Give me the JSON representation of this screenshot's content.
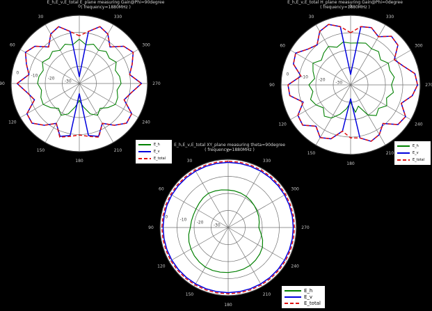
{
  "figure": {
    "background": "#000000",
    "text_color": "#d8d8d8",
    "grid_color": "#707070",
    "disc_color": "#ffffff",
    "radial_label_color": "#404040"
  },
  "chart_data": [
    {
      "type": "polar-line",
      "title_line1": "E_h,E_v,E_total E_plane measuring Gain@Phi=90degree",
      "title_line2": "( frequency=1880MHz )",
      "angle_convention": "0 at top, counterclockwise, degrees",
      "angle_labels": [
        "0",
        "30",
        "60",
        "90",
        "120",
        "150",
        "180",
        "210",
        "240",
        "270",
        "300",
        "330"
      ],
      "radial_tick_labels": [
        "0",
        "-10",
        "-20",
        "-30"
      ],
      "radial_ticks_db": [
        0,
        -10,
        -20,
        -30
      ],
      "r_range_db": [
        -40,
        0
      ],
      "angle_step_deg": 10,
      "legend": {
        "position": "bottom-right",
        "entries": [
          {
            "label": "E_h",
            "color": "#008000",
            "style": "solid"
          },
          {
            "label": "E_v",
            "color": "#0000dd",
            "style": "solid"
          },
          {
            "label": "E_total",
            "color": "#e01010",
            "style": "dashed"
          }
        ]
      },
      "series": [
        {
          "name": "E_h",
          "color": "#008000",
          "style": "solid",
          "width": 1.1,
          "values_db": [
            -14,
            -17,
            -15.5,
            -17.5,
            -15.5,
            -17,
            -15,
            -17.5,
            -16,
            -15.5,
            -17.5,
            -16,
            -15.5,
            -18,
            -21,
            -18.5,
            -21,
            -26,
            -30,
            -26,
            -21,
            -18.5,
            -21,
            -18,
            -15.5,
            -16,
            -17.5,
            -15.5,
            -16,
            -17.5,
            -15,
            -17,
            -15.5,
            -17.5,
            -15.5,
            -17
          ]
        },
        {
          "name": "E_v",
          "color": "#0000dd",
          "style": "solid",
          "width": 1.5,
          "values_db": [
            -36,
            -9,
            -4.5,
            -6.5,
            -12,
            -6,
            -3.5,
            -7,
            -10,
            -3.5,
            -9,
            -12,
            -4.5,
            -3.8,
            -8,
            -13,
            -7,
            -9,
            -34,
            -9,
            -7,
            -13,
            -8,
            -3.8,
            -4.5,
            -12,
            -9,
            -3.5,
            -10,
            -7,
            -3.5,
            -6,
            -12,
            -6.5,
            -4.5,
            -9
          ],
          "note": "sharp nulls to center at 0 and 180 deg"
        },
        {
          "name": "E_total",
          "color": "#e01010",
          "style": "dashed",
          "width": 1.5,
          "values_db": [
            -12,
            -9,
            -4.5,
            -6.5,
            -12,
            -6,
            -3.5,
            -7,
            -10,
            -3.5,
            -9,
            -12,
            -4.5,
            -3.8,
            -8,
            -13,
            -6.5,
            -8.5,
            -9.8,
            -8.5,
            -6.5,
            -13,
            -8,
            -3.8,
            -4.5,
            -12,
            -9,
            -3.5,
            -10,
            -7,
            -3.5,
            -6,
            -12,
            -6.5,
            -4.5,
            -9
          ]
        }
      ]
    },
    {
      "type": "polar-line",
      "title_line1": "E_h,E_v,E_total H_plane measuring Gain@Phi=0degree",
      "title_line2": "( frequency=1880MHz )",
      "angle_convention": "0 at top, counterclockwise, degrees",
      "angle_labels": [
        "0",
        "30",
        "60",
        "90",
        "120",
        "150",
        "180",
        "210",
        "240",
        "270",
        "300",
        "330"
      ],
      "radial_tick_labels": [
        "0",
        "-10",
        "-20",
        "-30"
      ],
      "radial_ticks_db": [
        0,
        -10,
        -20,
        -30
      ],
      "r_range_db": [
        -40,
        0
      ],
      "angle_step_deg": 10,
      "legend": {
        "position": "bottom-right",
        "entries": [
          {
            "label": "E_h",
            "color": "#008000",
            "style": "solid"
          },
          {
            "label": "E_v",
            "color": "#0000dd",
            "style": "solid"
          },
          {
            "label": "E_total",
            "color": "#e01010",
            "style": "dashed"
          }
        ]
      },
      "series": [
        {
          "name": "E_h",
          "color": "#008000",
          "style": "solid",
          "width": 1.1,
          "values_db": [
            -16,
            -15,
            -17,
            -14.5,
            -16,
            -18,
            -15,
            -17,
            -19,
            -16,
            -18,
            -15.5,
            -17,
            -19.5,
            -16.5,
            -18,
            -22,
            -26,
            -30,
            -24,
            -27,
            -20,
            -17,
            -19,
            -16,
            -18,
            -15,
            -16.5,
            -14.5,
            -16,
            -15,
            -17.5,
            -15,
            -16,
            -14.5,
            -15.5
          ]
        },
        {
          "name": "E_v",
          "color": "#0000dd",
          "style": "solid",
          "width": 1.5,
          "values_db": [
            -34,
            -6,
            -3,
            -4.5,
            -10,
            -8,
            -3.5,
            -5,
            -11,
            -4,
            -4.5,
            -11,
            -5,
            -4,
            -9,
            -5,
            -7,
            -13,
            -32,
            -9,
            -5.5,
            -7,
            -11,
            -4.5,
            -3.5,
            -9,
            -4,
            -1.5,
            -2.5,
            -8,
            -11,
            -4.5,
            -3.5,
            -8,
            -5,
            -6
          ],
          "note": "sharp nulls to center at 0 and 180 deg; max lobe near 270 deg"
        },
        {
          "name": "E_total",
          "color": "#e01010",
          "style": "dashed",
          "width": 1.5,
          "values_db": [
            -10,
            -6,
            -3,
            -4.5,
            -10,
            -8,
            -3.5,
            -5,
            -11,
            -4,
            -4.5,
            -11,
            -5,
            -4,
            -9,
            -5,
            -7,
            -13,
            -9.5,
            -9,
            -5.5,
            -7,
            -11,
            -4.5,
            -3.5,
            -9,
            -4,
            -1.5,
            -2.5,
            -8,
            -11,
            -4.5,
            -3.5,
            -8,
            -5,
            -6
          ]
        }
      ]
    },
    {
      "type": "polar-line",
      "title_line1": "E_h,E_v,E_total XY_plane measuring theta=90degree",
      "title_line2": "( frequency=1880MHz )",
      "angle_convention": "0 at top, counterclockwise, degrees",
      "angle_labels": [
        "0",
        "30",
        "60",
        "90",
        "120",
        "150",
        "180",
        "210",
        "240",
        "270",
        "300",
        "330"
      ],
      "radial_tick_labels": [
        "0",
        "-10",
        "-20",
        "-30"
      ],
      "radial_ticks_db": [
        0,
        -10,
        -20,
        -30
      ],
      "r_range_db": [
        -40,
        0
      ],
      "angle_step_deg": 10,
      "legend": {
        "position": "bottom-right",
        "entries": [
          {
            "label": "E_h",
            "color": "#008000",
            "style": "solid"
          },
          {
            "label": "E_v",
            "color": "#0000dd",
            "style": "solid"
          },
          {
            "label": "E_total",
            "color": "#e01010",
            "style": "dashed"
          }
        ]
      },
      "series": [
        {
          "name": "E_h",
          "color": "#008000",
          "style": "solid",
          "width": 1.2,
          "values_db": [
            -18,
            -17.6,
            -17.2,
            -16.8,
            -17.2,
            -17.8,
            -18.2,
            -18.3,
            -18.1,
            -17.8,
            -16.5,
            -15.5,
            -14.8,
            -14.1,
            -13.6,
            -13.2,
            -13.2,
            -13.4,
            -13.6,
            -13.8,
            -14,
            -14.3,
            -15,
            -15.8,
            -16.8,
            -18.5,
            -20.5,
            -22,
            -21.5,
            -20.9,
            -20.5,
            -20,
            -19.4,
            -18.9,
            -18.5,
            -18.2
          ]
        },
        {
          "name": "E_v",
          "color": "#0000dd",
          "style": "solid",
          "width": 1.5,
          "values_db": [
            -1.8,
            -1.8,
            -1.8,
            -1.8,
            -1.8,
            -1.8,
            -1.8,
            -1.8,
            -1.8,
            -1.8,
            -1.8,
            -1.8,
            -1.8,
            -1.8,
            -1.8,
            -1.8,
            -1.8,
            -1.8,
            -1.8,
            -1.8,
            -1.8,
            -1.8,
            -1.8,
            -1.8,
            -1.8,
            -1.8,
            -1.8,
            -1.8,
            -1.8,
            -1.8,
            -1.8,
            -1.8,
            -1.8,
            -1.8,
            -1.8,
            -1.8
          ],
          "note": "nearly omnidirectional circle"
        },
        {
          "name": "E_total",
          "color": "#e01010",
          "style": "dashed",
          "width": 1.5,
          "values_db": [
            -1.1,
            -1.1,
            -1.1,
            -1.1,
            -1.1,
            -1.1,
            -1.1,
            -1.1,
            -1.1,
            -1.1,
            -1.1,
            -1.1,
            -1.1,
            -1.1,
            -1.1,
            -1.1,
            -1.1,
            -1.1,
            -1.1,
            -1.1,
            -1.1,
            -1.1,
            -1.1,
            -1.1,
            -1.1,
            -1.1,
            -1.1,
            -1.1,
            -1.1,
            -1.1,
            -1.1,
            -1.1,
            -1.1,
            -1.1,
            -1.1,
            -1.1
          ]
        }
      ]
    }
  ]
}
